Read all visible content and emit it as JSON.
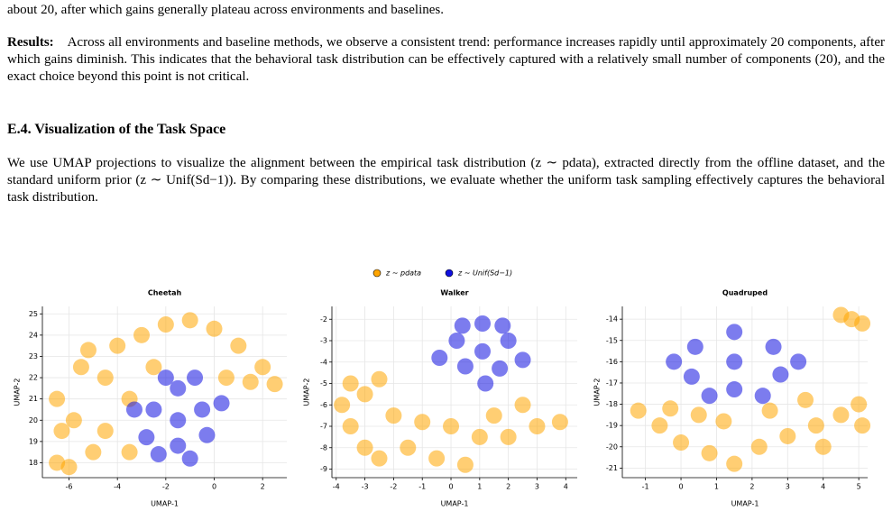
{
  "document": {
    "cut_line": "about 20, after which gains generally plateau across environments and baselines.",
    "results_label": "Results:",
    "results_text": "Across all environments and baseline methods, we observe a consistent trend: performance increases rapidly until approximately 20 components, after which gains diminish. This indicates that the behavioral task distribution can be effectively captured with a relatively small number of components (20), and the exact choice beyond this point is not critical.",
    "section_title": "E.4. Visualization of the Task Space",
    "section_text": "We use UMAP projections to visualize the alignment between the empirical task distribution (z ∼ pdata), extracted directly from the offline dataset, and the standard uniform prior (z ∼ Unif(Sd−1)). By comparing these distributions, we evaluate whether the uniform task sampling effectively captures the behavioral task distribution."
  },
  "chart_data": [
    {
      "type": "scatter",
      "title": "Cheetah",
      "xlabel": "UMAP-1",
      "ylabel": "UMAP-2",
      "xlim": [
        -7.1,
        3.0
      ],
      "ylim": [
        17.3,
        25.35
      ],
      "xticks": [
        -6,
        -4,
        -2,
        0,
        2
      ],
      "yticks": [
        18,
        19,
        20,
        21,
        22,
        23,
        24,
        25
      ],
      "grid": true,
      "series": [
        {
          "name": "z ∼ pdata",
          "color": "#ffa500",
          "x": [
            -6.5,
            -6.3,
            -6.5,
            -5.5,
            -5.2,
            -4.5,
            -4,
            -3,
            -2,
            -1,
            0,
            1,
            2,
            2.5,
            -5,
            -4.5,
            -3.5,
            -2.5,
            0.5,
            -6,
            -3.5,
            1.5,
            -5.8
          ],
          "y": [
            18,
            19.5,
            21,
            22.5,
            23.3,
            22,
            23.5,
            24,
            24.5,
            24.7,
            24.3,
            23.5,
            22.5,
            21.7,
            18.5,
            19.5,
            21,
            22.5,
            22,
            17.8,
            18.5,
            21.8,
            20
          ]
        },
        {
          "name": "z ∼ Unif(Sd−1)",
          "color": "#1010e0",
          "x": [
            -1.5,
            -2.5,
            -0.5,
            -1.5,
            -1.5,
            -2.8,
            -0.3,
            -2,
            -0.8,
            -3.3,
            0.3,
            -1,
            -2.3
          ],
          "y": [
            20,
            20.5,
            20.5,
            21.5,
            18.8,
            19.2,
            19.3,
            22,
            22,
            20.5,
            20.8,
            18.2,
            18.4
          ]
        }
      ]
    },
    {
      "type": "scatter",
      "title": "Walker",
      "xlabel": "UMAP-1",
      "ylabel": "UMAP-2",
      "xlim": [
        -4.15,
        4.4
      ],
      "ylim": [
        -9.4,
        -1.4
      ],
      "xticks": [
        -4,
        -3,
        -2,
        -1,
        0,
        1,
        2,
        3,
        4
      ],
      "yticks": [
        -9,
        -8,
        -7,
        -6,
        -5,
        -4,
        -3,
        -2
      ],
      "grid": true,
      "series": [
        {
          "name": "z ∼ pdata",
          "color": "#ffa500",
          "x": [
            -3.5,
            -3,
            -2.5,
            -3.5,
            -3,
            -2,
            -1.5,
            -0.5,
            0.5,
            1,
            2,
            3,
            3.8,
            2.5,
            -1,
            0,
            -2.5,
            1.5,
            -3.8
          ],
          "y": [
            -5,
            -5.5,
            -4.8,
            -7,
            -8,
            -6.5,
            -8,
            -8.5,
            -8.8,
            -7.5,
            -7.5,
            -7,
            -6.8,
            -6,
            -6.8,
            -7,
            -8.5,
            -6.5,
            -6
          ]
        },
        {
          "name": "z ∼ Unif(Sd−1)",
          "color": "#1010e0",
          "x": [
            1.1,
            0.2,
            2,
            1.1,
            0.5,
            1.7,
            -0.4,
            2.5,
            1.2,
            0.4,
            1.8
          ],
          "y": [
            -3.5,
            -3,
            -3,
            -2.2,
            -4.2,
            -4.3,
            -3.8,
            -3.9,
            -5,
            -2.3,
            -2.3
          ]
        }
      ]
    },
    {
      "type": "scatter",
      "title": "Quadruped",
      "xlabel": "UMAP-1",
      "ylabel": "UMAP-2",
      "xlim": [
        -1.65,
        5.25
      ],
      "ylim": [
        -21.45,
        -13.4
      ],
      "xticks": [
        -1,
        0,
        1,
        2,
        3,
        4,
        5
      ],
      "yticks": [
        -21,
        -20,
        -19,
        -18,
        -17,
        -16,
        -15,
        -14
      ],
      "grid": true,
      "series": [
        {
          "name": "z ∼ pdata",
          "color": "#ffa500",
          "x": [
            -1.2,
            -0.6,
            0,
            0.8,
            1.5,
            2.2,
            3,
            3.8,
            4.5,
            5,
            5.1,
            4,
            1.2,
            2.5,
            3.5,
            -0.3,
            0.5,
            4.8,
            5.1,
            4.5
          ],
          "y": [
            -18.3,
            -19,
            -19.8,
            -20.3,
            -20.8,
            -20,
            -19.5,
            -19,
            -18.5,
            -18,
            -19,
            -20,
            -18.8,
            -18.3,
            -17.8,
            -18.2,
            -18.5,
            -14,
            -14.2,
            -13.8
          ]
        },
        {
          "name": "z ∼ Unif(Sd−1)",
          "color": "#1010e0",
          "x": [
            1.5,
            0.4,
            2.6,
            1.5,
            0.3,
            2.8,
            1.5,
            -0.2,
            3.3,
            0.8,
            2.3
          ],
          "y": [
            -16,
            -15.3,
            -15.3,
            -14.6,
            -16.7,
            -16.6,
            -17.3,
            -16,
            -16,
            -17.6,
            -17.6
          ]
        }
      ]
    }
  ]
}
